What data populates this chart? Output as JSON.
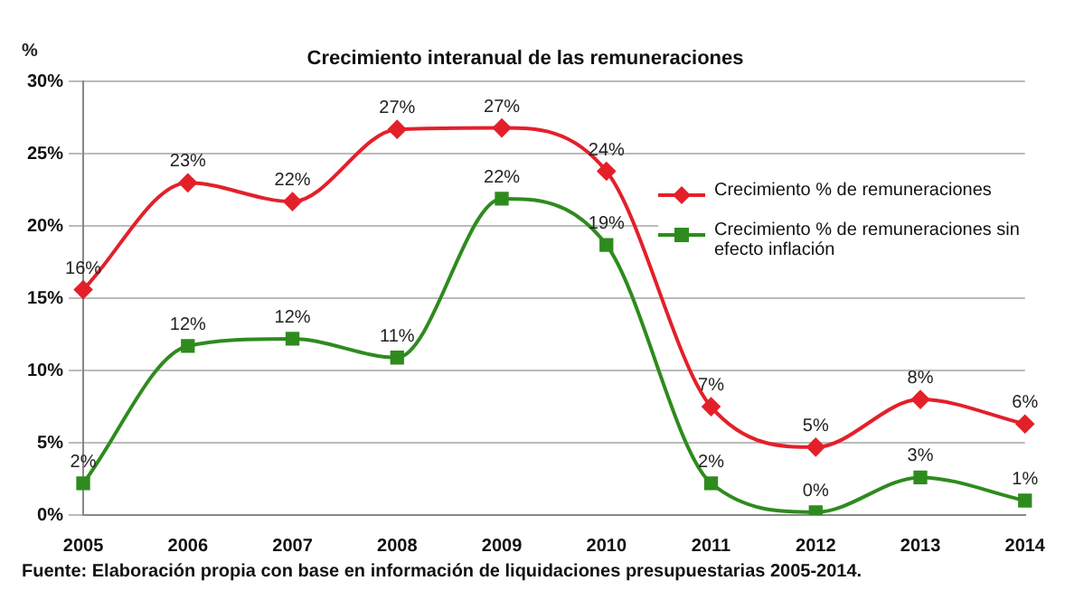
{
  "chart_data": {
    "type": "line",
    "title": "Crecimiento interanual de las remuneraciones",
    "ylabel": "%",
    "categories": [
      "2005",
      "2006",
      "2007",
      "2008",
      "2009",
      "2010",
      "2011",
      "2012",
      "2013",
      "2014"
    ],
    "series": [
      {
        "name": "Crecimiento % de remuneraciones",
        "color": "#e3202a",
        "marker": "diamond",
        "values": [
          15.6,
          23,
          21.7,
          26.7,
          26.8,
          23.8,
          7.5,
          4.7,
          8,
          6.3
        ],
        "value_labels": [
          "16%",
          "23%",
          "22%",
          "27%",
          "27%",
          "24%",
          "7%",
          "5%",
          "8%",
          "6%"
        ]
      },
      {
        "name": "Crecimiento %  de remuneraciones sin efecto inflación",
        "color": "#2e8b1e",
        "marker": "square",
        "values": [
          2.2,
          11.7,
          12.2,
          10.9,
          21.9,
          18.7,
          2.2,
          0.2,
          2.6,
          1.0
        ],
        "value_labels": [
          "2%",
          "12%",
          "12%",
          "11%",
          "22%",
          "19%",
          "2%",
          "0%",
          "3%",
          "1%"
        ]
      }
    ],
    "ylim": [
      0,
      30
    ],
    "yticks": [
      {
        "value": 0,
        "label": "0%"
      },
      {
        "value": 5,
        "label": "5%"
      },
      {
        "value": 10,
        "label": "10%"
      },
      {
        "value": 15,
        "label": "15%"
      },
      {
        "value": 20,
        "label": "20%"
      },
      {
        "value": 25,
        "label": "25%"
      },
      {
        "value": 30,
        "label": "30%"
      }
    ],
    "grid": "y",
    "legend": "right",
    "line_style": "solid",
    "annotations": [
      "Fuente: Elaboración propia con base en información de liquidaciones presupuestarias 2005-2014."
    ]
  }
}
